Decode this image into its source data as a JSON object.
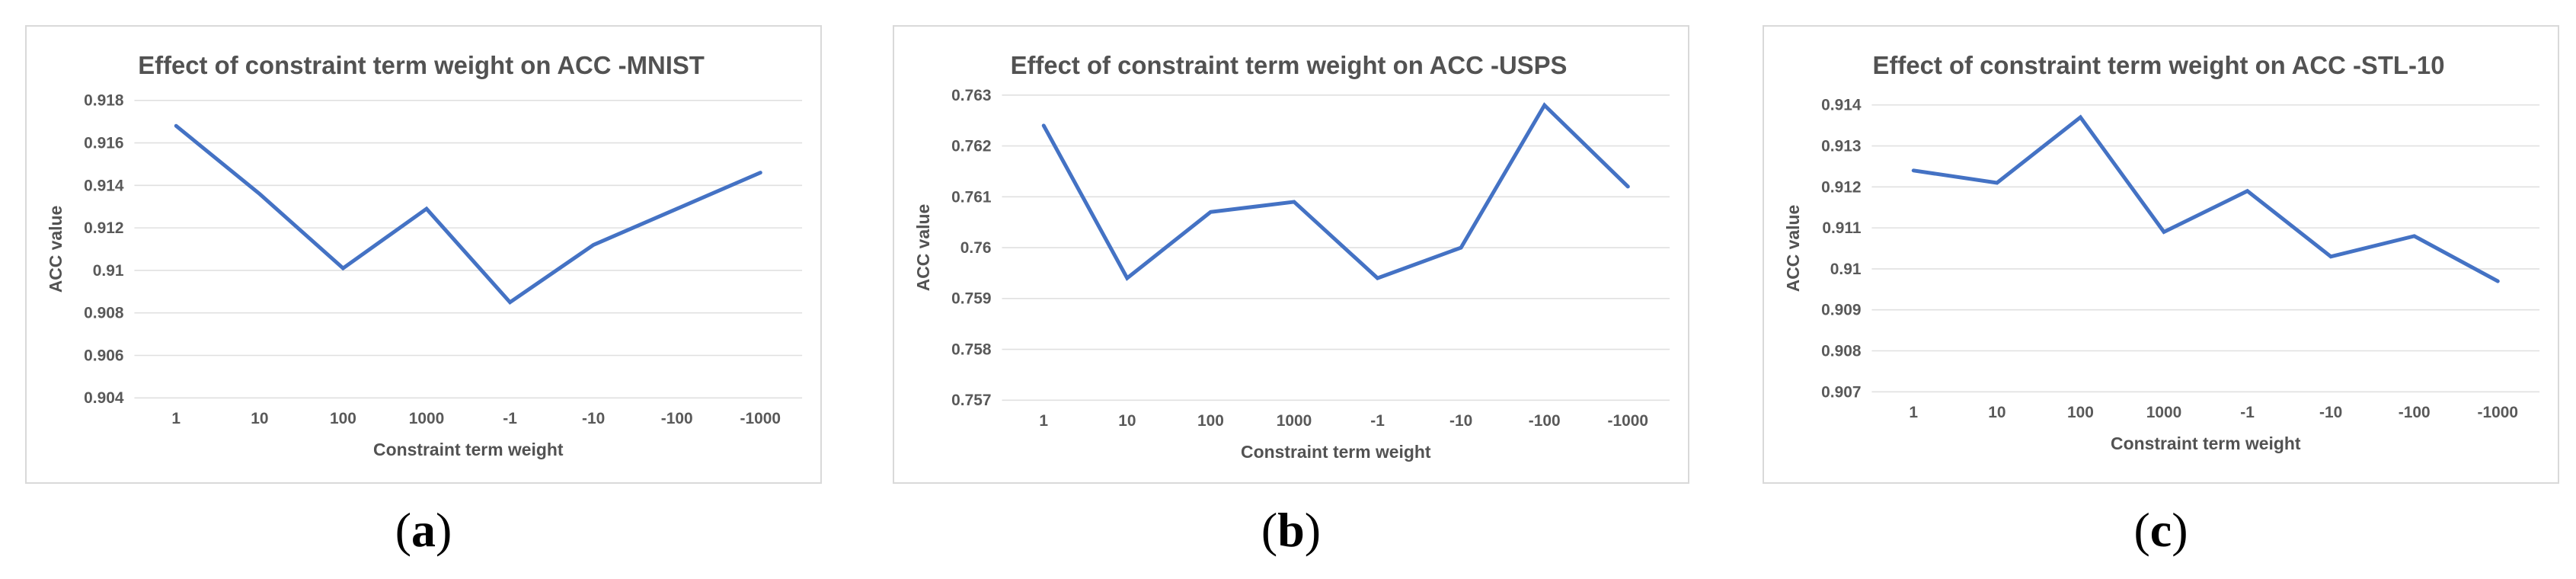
{
  "figure": {
    "captions": [
      {
        "open": "(",
        "letter": "a",
        "close": ")"
      },
      {
        "open": "(",
        "letter": "b",
        "close": ")"
      },
      {
        "open": "(",
        "letter": "c",
        "close": ")"
      }
    ]
  },
  "colors": {
    "line": "#4472C4",
    "gridline": "#e0e0e0",
    "title_text": "#525252",
    "tick_text": "#595959",
    "axis_title_text": "#525252",
    "panel_border": "#d9d9d9"
  },
  "chart_data": [
    {
      "type": "line",
      "title": "Effect of constraint term weight on ACC -MNIST",
      "xlabel": "Constraint term weight",
      "ylabel": "ACC value",
      "categories": [
        "1",
        "10",
        "100",
        "1000",
        "-1",
        "-10",
        "-100",
        "-1000"
      ],
      "values": [
        0.9168,
        0.9136,
        0.9101,
        0.9129,
        0.9085,
        0.9112,
        0.9129,
        0.9146
      ],
      "ylim": [
        0.904,
        0.918
      ],
      "ytick_step": 0.002,
      "y_ticks": [
        "0.918",
        "0.916",
        "0.914",
        "0.912",
        "0.91",
        "0.908",
        "0.906",
        "0.904"
      ],
      "grid": true,
      "legend": "none"
    },
    {
      "type": "line",
      "title": "Effect of constraint term weight on ACC -USPS",
      "xlabel": "Constraint term weight",
      "ylabel": "ACC value",
      "categories": [
        "1",
        "10",
        "100",
        "1000",
        "-1",
        "-10",
        "-100",
        "-1000"
      ],
      "values": [
        0.7624,
        0.7594,
        0.7607,
        0.7609,
        0.7594,
        0.76,
        0.7628,
        0.7612
      ],
      "ylim": [
        0.757,
        0.763
      ],
      "ytick_step": 0.001,
      "y_ticks": [
        "0.763",
        "0.762",
        "0.761",
        "0.76",
        "0.759",
        "0.758",
        "0.757"
      ],
      "grid": true,
      "legend": "none"
    },
    {
      "type": "line",
      "title": "Effect of constraint term weight on ACC -STL-10",
      "xlabel": "Constraint term weight",
      "ylabel": "ACC value",
      "categories": [
        "1",
        "10",
        "100",
        "1000",
        "-1",
        "-10",
        "-100",
        "-1000"
      ],
      "values": [
        0.9124,
        0.9121,
        0.9137,
        0.9109,
        0.9119,
        0.9103,
        0.9108,
        0.9097
      ],
      "ylim": [
        0.907,
        0.914
      ],
      "ytick_step": 0.001,
      "y_ticks": [
        "0.914",
        "0.913",
        "0.912",
        "0.911",
        "0.91",
        "0.909",
        "0.908",
        "0.907"
      ],
      "grid": true,
      "legend": "none"
    }
  ]
}
